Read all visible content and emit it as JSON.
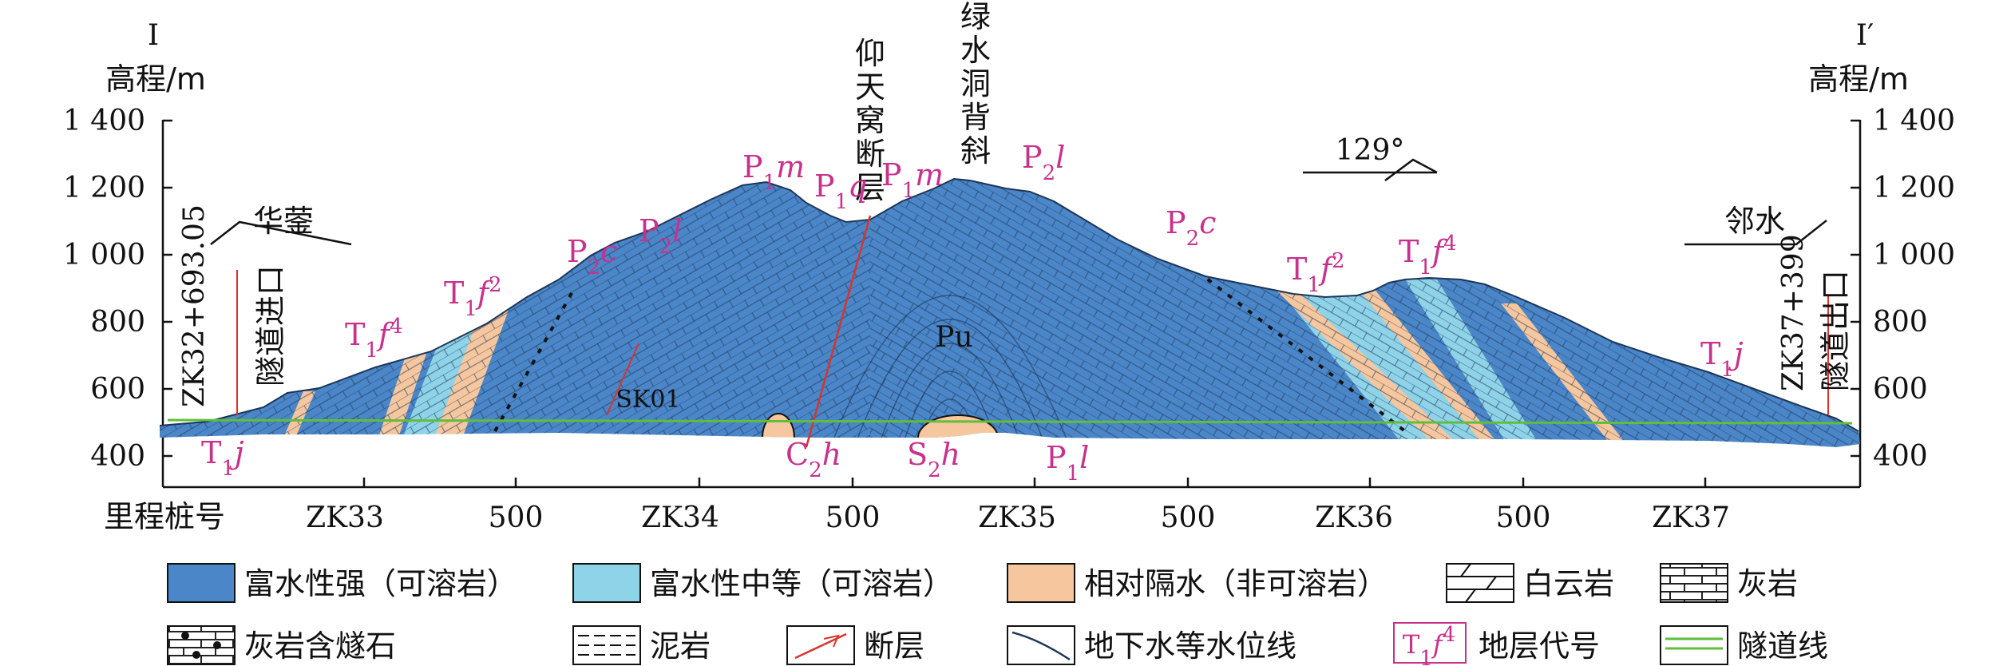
{
  "profile": {
    "left_label": "I",
    "right_label": "I′",
    "elev_label_left": "高程/m",
    "elev_label_right": "高程/m",
    "elev_ticks": [
      "1 400",
      "1 200",
      "1 000",
      "800",
      "600",
      "400"
    ],
    "mileage_label": "里程桩号",
    "mileage_ticks": [
      "ZK33",
      "500",
      "ZK34",
      "500",
      "ZK35",
      "500",
      "ZK36",
      "500",
      "ZK37"
    ]
  },
  "annotations": {
    "tunnel_entrance_chainage": "ZK32+693.05",
    "tunnel_entrance": "隧道进口",
    "tunnel_exit_chainage": "ZK37+399",
    "tunnel_exit": "隧道出口",
    "place_left": "华蓥",
    "place_right": "邻水",
    "fault_name": "仰天窝断层",
    "anticline_name": "绿水洞背斜",
    "strike": "129°"
  },
  "strata_labels": [
    {
      "base": "T",
      "sub": "1",
      "ital": "j",
      "sup": ""
    },
    {
      "base": "T",
      "sub": "1",
      "ital": "f",
      "sup": "4"
    },
    {
      "base": "T",
      "sub": "1",
      "ital": "f",
      "sup": "2"
    },
    {
      "base": "P",
      "sub": "2",
      "ital": "c",
      "sup": ""
    },
    {
      "base": "P",
      "sub": "2",
      "ital": "l",
      "sup": ""
    },
    {
      "base": "P",
      "sub": "1",
      "ital": "m",
      "sup": ""
    },
    {
      "base": "P",
      "sub": "1",
      "ital": "q",
      "sup": ""
    },
    {
      "base": "P",
      "sub": "1",
      "ital": "m",
      "sup": ""
    },
    {
      "base": "P",
      "sub": "2",
      "ital": "l",
      "sup": ""
    },
    {
      "base": "P",
      "sub": "2",
      "ital": "c",
      "sup": ""
    },
    {
      "base": "T",
      "sub": "1",
      "ital": "f",
      "sup": "2"
    },
    {
      "base": "T",
      "sub": "1",
      "ital": "f",
      "sup": "4"
    },
    {
      "base": "T",
      "sub": "1",
      "ital": "j",
      "sup": ""
    },
    {
      "base": "C",
      "sub": "2",
      "ital": "h",
      "sup": ""
    },
    {
      "base": "S",
      "sub": "2",
      "ital": "h",
      "sup": ""
    },
    {
      "base": "P",
      "sub": "1",
      "ital": "l",
      "sup": ""
    }
  ],
  "inner_labels": [
    "Pu",
    "SK01"
  ],
  "legend": [
    "富水性强（可溶岩）",
    "富水性中等（可溶岩）",
    "相对隔水（非可溶岩）",
    "白云岩",
    "灰岩",
    "灰岩含燧石",
    "泥岩",
    "断层",
    "地下水等水位线",
    "地层代号",
    "隧道线"
  ],
  "legend_swatch_code": {
    "base": "T",
    "sub": "1",
    "ital": "f",
    "sup": "4"
  },
  "colors": {
    "strong": "#4a86c8",
    "medium": "#8fd3e8",
    "aquitard": "#f6c79e",
    "strata_label": "#c8318c",
    "tunnel": "#5fbf3a",
    "fault": "#d9342b"
  }
}
